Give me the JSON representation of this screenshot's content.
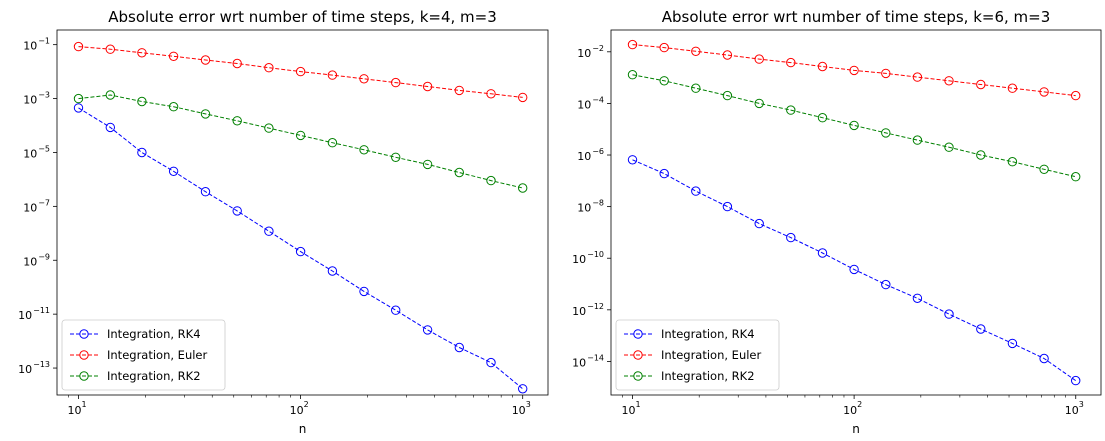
{
  "chart_data": [
    {
      "type": "line",
      "title": "Absolute error wrt number of time steps, k=4, m=3",
      "xlabel": "n",
      "ylabel": "",
      "xscale": "log",
      "yscale": "log",
      "xlim": [
        8,
        1300
      ],
      "ylim": [
        1e-14,
        0.35
      ],
      "xticks": [
        {
          "value": 10,
          "label": "10",
          "exp": "1"
        },
        {
          "value": 100,
          "label": "10",
          "exp": "2"
        },
        {
          "value": 1000,
          "label": "10",
          "exp": "3"
        }
      ],
      "yticks": [
        {
          "value": 1e-13,
          "label": "10",
          "exp": "−13"
        },
        {
          "value": 1e-11,
          "label": "10",
          "exp": "−11"
        },
        {
          "value": 1e-09,
          "label": "10",
          "exp": "−9"
        },
        {
          "value": 1e-07,
          "label": "10",
          "exp": "−7"
        },
        {
          "value": 1e-05,
          "label": "10",
          "exp": "−5"
        },
        {
          "value": 0.001,
          "label": "10",
          "exp": "−3"
        },
        {
          "value": 0.1,
          "label": "10",
          "exp": "−1"
        }
      ],
      "x": [
        10,
        13.9,
        19.3,
        26.8,
        37.3,
        51.8,
        72.0,
        100,
        139,
        193,
        268,
        373,
        518,
        720,
        1000
      ],
      "series": [
        {
          "name": "Integration, RK4",
          "color": "#0000ff",
          "values": [
            0.00045,
            8.5e-05,
            1e-05,
            2e-06,
            3.5e-07,
            6.8e-08,
            1.2e-08,
            2.1e-09,
            4e-10,
            7e-11,
            1.4e-11,
            2.6e-12,
            5.8e-13,
            1.6e-13,
            1.7e-14
          ]
        },
        {
          "name": "Integration, Euler",
          "color": "#ff0000",
          "values": [
            0.085,
            0.068,
            0.05,
            0.037,
            0.027,
            0.02,
            0.014,
            0.01,
            0.0074,
            0.0054,
            0.0039,
            0.0028,
            0.002,
            0.0015,
            0.0011
          ]
        },
        {
          "name": "Integration, RK2",
          "color": "#008000",
          "values": [
            0.001,
            0.00135,
            0.00078,
            0.0005,
            0.00027,
            0.00015,
            8e-05,
            4.3e-05,
            2.3e-05,
            1.25e-05,
            6.6e-06,
            3.6e-06,
            1.8e-06,
            9e-07,
            4.8e-07
          ]
        }
      ],
      "legend": "lower left",
      "grid": false
    },
    {
      "type": "line",
      "title": "Absolute error wrt number of time steps, k=6, m=3",
      "xlabel": "n",
      "ylabel": "",
      "xscale": "log",
      "yscale": "log",
      "xlim": [
        8,
        1300
      ],
      "ylim": [
        5e-16,
        0.07
      ],
      "xticks": [
        {
          "value": 10,
          "label": "10",
          "exp": "1"
        },
        {
          "value": 100,
          "label": "10",
          "exp": "2"
        },
        {
          "value": 1000,
          "label": "10",
          "exp": "3"
        }
      ],
      "yticks": [
        {
          "value": 1e-14,
          "label": "10",
          "exp": "−14"
        },
        {
          "value": 1e-12,
          "label": "10",
          "exp": "−12"
        },
        {
          "value": 1e-10,
          "label": "10",
          "exp": "−10"
        },
        {
          "value": 1e-08,
          "label": "10",
          "exp": "−8"
        },
        {
          "value": 1e-06,
          "label": "10",
          "exp": "−6"
        },
        {
          "value": 0.0001,
          "label": "10",
          "exp": "−4"
        },
        {
          "value": 0.01,
          "label": "10",
          "exp": "−2"
        }
      ],
      "x": [
        10,
        13.9,
        19.3,
        26.8,
        37.3,
        51.8,
        72.0,
        100,
        139,
        193,
        268,
        373,
        518,
        720,
        1000
      ],
      "series": [
        {
          "name": "Integration, RK4",
          "color": "#0000ff",
          "values": [
            6.5e-07,
            1.9e-07,
            4e-08,
            1e-08,
            2.2e-09,
            6.3e-10,
            1.6e-10,
            3.7e-11,
            9.5e-12,
            2.8e-12,
            6.8e-13,
            1.8e-13,
            5e-14,
            1.3e-14,
            1.8e-15
          ]
        },
        {
          "name": "Integration, Euler",
          "color": "#ff0000",
          "values": [
            0.019,
            0.0145,
            0.0105,
            0.0075,
            0.0052,
            0.0038,
            0.0027,
            0.0019,
            0.00145,
            0.00105,
            0.00075,
            0.00054,
            0.00039,
            0.00028,
            0.0002
          ]
        },
        {
          "name": "Integration, RK2",
          "color": "#008000",
          "values": [
            0.0013,
            0.00075,
            0.00039,
            0.0002,
            0.0001,
            5.5e-05,
            2.8e-05,
            1.4e-05,
            7.2e-06,
            3.8e-06,
            2e-06,
            1e-06,
            5.5e-07,
            2.8e-07,
            1.45e-07
          ]
        }
      ],
      "legend": "lower left",
      "grid": false
    }
  ]
}
